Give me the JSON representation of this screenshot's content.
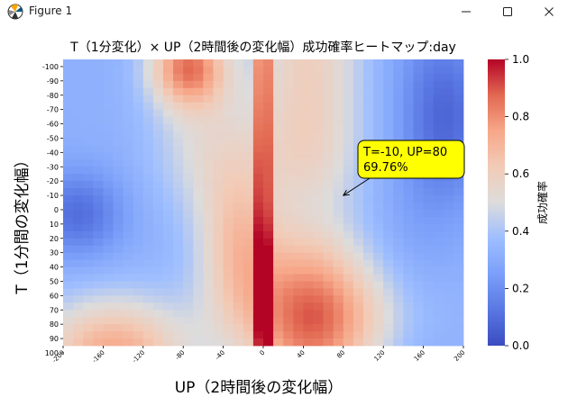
{
  "window": {
    "title": "Figure 1",
    "app_icon": "matplotlib-icon",
    "controls": [
      "minimize-icon",
      "maximize-icon",
      "close-icon"
    ]
  },
  "chart_data": {
    "type": "heatmap",
    "title": "T（1分変化）× UP（2時間後の変化幅）成功確率ヒートマップ:day",
    "xlabel": "UP（2時間後の変化幅）",
    "ylabel": "T（1分間の変化幅）",
    "x_tick_labels": [
      "-200",
      "-160",
      "-120",
      "-80",
      "-40",
      "0",
      "40",
      "80",
      "120",
      "160",
      "200"
    ],
    "y_tick_labels": [
      "-100",
      "-90",
      "-80",
      "-70",
      "-60",
      "-50",
      "-40",
      "-30",
      "-20",
      "-10",
      "0",
      "10",
      "20",
      "30",
      "40",
      "50",
      "60",
      "70",
      "80",
      "90",
      "100"
    ],
    "colorbar": {
      "label": "成功確率",
      "range": [
        0.0,
        1.0
      ],
      "tick_labels": [
        "0.0",
        "0.2",
        "0.4",
        "0.6",
        "0.8",
        "1.0"
      ],
      "colormap": "coolwarm"
    },
    "grid": {
      "x_range": [
        -200,
        200
      ],
      "x_step": 10,
      "y_range": [
        -100,
        100
      ],
      "y_step": 5
    },
    "description_model": "values read approximately from colors",
    "annotation": {
      "lines": [
        "T=-10, UP=80",
        "69.76%"
      ],
      "point": {
        "x": 80,
        "y": -10
      },
      "box_color": "#ffff00"
    },
    "colors": {
      "low": "#3b4cc0",
      "mid": "#dddddd",
      "high": "#b40426"
    }
  }
}
